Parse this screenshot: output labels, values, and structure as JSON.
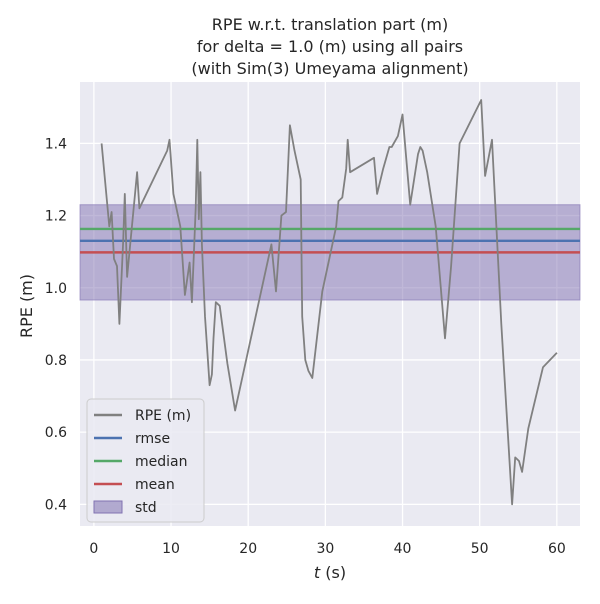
{
  "colors": {
    "background": "#eaeaf2",
    "grid": "#ffffff",
    "rpe": "#808080",
    "rmse": "#4c72b0",
    "median": "#55a868",
    "mean": "#c44e52",
    "std": "#8172b2"
  },
  "chart_data": {
    "type": "line",
    "title_lines": [
      "RPE w.r.t. translation part (m)",
      "for delta = 1.0 (m) using all pairs",
      "(with Sim(3) Umeyama alignment)"
    ],
    "xlabel_var": "t",
    "xlabel_unit": " (s)",
    "ylabel": "RPE (m)",
    "xlim": [
      -1.8,
      63
    ],
    "ylim": [
      0.34,
      1.57
    ],
    "xticks": [
      0,
      10,
      20,
      30,
      40,
      50,
      60
    ],
    "yticks": [
      0.4,
      0.6,
      0.8,
      1.0,
      1.2,
      1.4
    ],
    "ytick_labels": [
      "0.4",
      "0.6",
      "0.8",
      "1.0",
      "1.2",
      "1.4"
    ],
    "grid": true,
    "legend_position": "lower-left",
    "series": [
      {
        "name": "RPE (m)",
        "x": [
          1.0,
          2.0,
          2.3,
          2.6,
          3.0,
          3.3,
          3.8,
          4.0,
          4.3,
          4.7,
          5.2,
          5.6,
          5.9,
          9.5,
          9.8,
          10.3,
          11.2,
          11.8,
          12.4,
          12.7,
          13.2,
          13.4,
          13.6,
          13.8,
          14.0,
          14.4,
          15.0,
          15.3,
          15.5,
          15.8,
          16.3,
          17.3,
          18.3,
          23.0,
          23.6,
          24.3,
          24.9,
          25.4,
          26.0,
          26.8,
          27.0,
          27.4,
          27.8,
          28.3,
          29.6,
          30.4,
          31.4,
          31.7,
          32.2,
          32.7,
          32.9,
          33.2,
          36.3,
          36.7,
          37.5,
          38.3,
          38.6,
          39.4,
          40.0,
          41.0,
          42.0,
          42.3,
          42.6,
          43.2,
          44.3,
          45.5,
          46.3,
          47.4,
          50.2,
          50.7,
          51.6,
          52.8,
          54.2,
          54.6,
          55.1,
          55.5,
          56.3,
          58.2,
          60.0
        ],
        "y": [
          1.4,
          1.17,
          1.21,
          1.08,
          1.06,
          0.9,
          1.13,
          1.26,
          1.03,
          1.12,
          1.23,
          1.32,
          1.22,
          1.38,
          1.41,
          1.26,
          1.17,
          0.98,
          1.07,
          0.96,
          1.22,
          1.41,
          1.19,
          1.32,
          1.12,
          0.92,
          0.73,
          0.76,
          0.86,
          0.96,
          0.95,
          0.79,
          0.66,
          1.12,
          0.99,
          1.2,
          1.21,
          1.45,
          1.38,
          1.3,
          0.92,
          0.8,
          0.77,
          0.75,
          0.99,
          1.07,
          1.17,
          1.24,
          1.25,
          1.33,
          1.41,
          1.32,
          1.36,
          1.26,
          1.33,
          1.39,
          1.39,
          1.42,
          1.48,
          1.23,
          1.37,
          1.39,
          1.38,
          1.32,
          1.17,
          0.86,
          1.06,
          1.4,
          1.52,
          1.31,
          1.41,
          0.9,
          0.4,
          0.53,
          0.52,
          0.49,
          0.61,
          0.78,
          0.82
        ]
      },
      {
        "name": "rmse",
        "constant": 1.13
      },
      {
        "name": "median",
        "constant": 1.163
      },
      {
        "name": "mean",
        "constant": 1.098
      },
      {
        "name": "std",
        "band": [
          0.966,
          1.23
        ]
      }
    ]
  }
}
